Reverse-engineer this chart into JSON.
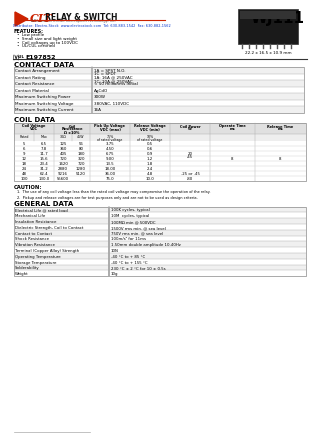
{
  "title": "WJ111",
  "logo_cit": "CIT",
  "logo_relay": "RELAY & SWITCH",
  "logo_sub": "A Division of Circuit Interruption Technology, Inc.",
  "distributor": "Distributor: Electro-Stock  www.electrostock.com  Tel: 630-883-1542  Fax: 630-882-1562",
  "features_title": "FEATURES:",
  "features": [
    "Low profile",
    "Small size and light weight",
    "Coil voltages up to 100VDC",
    "UL/CUL certified"
  ],
  "ul_text": "E197852",
  "dimensions": "22.2 x 16.5 x 10.9 mm",
  "contact_data_title": "CONTACT DATA",
  "contact_rows": [
    [
      "Contact Arrangement",
      "1A = SPST N.O.\n1C = SPDT"
    ],
    [
      "Contact Rating",
      "1A: 16A @ 250VAC\n1C: 10A @ 250VAC"
    ],
    [
      "Contact Resistance",
      "< 50 milliohms initial"
    ],
    [
      "Contact Material",
      "AgCdO"
    ],
    [
      "Maximum Switching Power",
      "300W"
    ],
    [
      "Maximum Switching Voltage",
      "380VAC, 110VDC"
    ],
    [
      "Maximum Switching Current",
      "16A"
    ]
  ],
  "coil_data_title": "COIL DATA",
  "coil_col_headers": [
    "Coil Voltage\nVDC",
    "Coil\nResistance\nΩ ±10%",
    "Pick Up Voltage\nVDC (max)",
    "Release Voltage\nVDC (min)",
    "Coil Power\nW",
    "Operate Time\nms",
    "Release Time\nms"
  ],
  "coil_sub_headers": [
    "Rated",
    "Max",
    "30Ω",
    "45W",
    "75%\nof rated voltage",
    "10%\nof rated voltage"
  ],
  "coil_rows": [
    [
      "5",
      "6.5",
      "125",
      "56",
      "3.75",
      "0.5",
      "",
      "",
      ""
    ],
    [
      "6",
      "7.8",
      "360",
      "80",
      "4.50",
      "0.6",
      "",
      "",
      ""
    ],
    [
      "9",
      "11.7",
      "405",
      "180",
      "6.75",
      "0.9",
      "20\n.45",
      "",
      ""
    ],
    [
      "12",
      "15.6",
      "720",
      "320",
      "9.00",
      "1.2",
      "",
      "8",
      "8"
    ],
    [
      "18",
      "23.4",
      "1620",
      "720",
      "13.5",
      "1.8",
      "",
      "",
      ""
    ],
    [
      "24",
      "31.2",
      "2880",
      "1280",
      "18.00",
      "2.4",
      "",
      "",
      ""
    ],
    [
      "48",
      "62.4",
      "9216",
      "5120",
      "36.00",
      "4.8",
      ".25 or .45",
      "",
      ""
    ],
    [
      "100",
      "130.0",
      "55600",
      "",
      "75.0",
      "10.0",
      ".80",
      "",
      ""
    ]
  ],
  "caution_title": "CAUTION:",
  "cautions": [
    "The use of any coil voltage less than the rated coil voltage may compromise the operation of the relay.",
    "Pickup and release voltages are for test purposes only and are not to be used as design criteria."
  ],
  "general_data_title": "GENERAL DATA",
  "general_rows": [
    [
      "Electrical Life @ rated load",
      "100K cycles, typical"
    ],
    [
      "Mechanical Life",
      "10M  cycles, typical"
    ],
    [
      "Insulation Resistance",
      "100MΩ min @ 500VDC"
    ],
    [
      "Dielectric Strength, Coil to Contact",
      "1500V rms min. @ sea level"
    ],
    [
      "Contact to Contact",
      "750V rms min. @ sea level"
    ],
    [
      "Shock Resistance",
      "100m/s² for 11ms"
    ],
    [
      "Vibration Resistance",
      "1.50mm double amplitude 10-40Hz"
    ],
    [
      "Terminal (Copper Alloy) Strength",
      "10N"
    ],
    [
      "Operating Temperature",
      "-40 °C to + 85 °C"
    ],
    [
      "Storage Temperature",
      "-40 °C to + 155 °C"
    ],
    [
      "Solderability",
      "230 °C ± 2 °C for 10 ± 0.5s"
    ],
    [
      "Weight",
      "10g"
    ]
  ],
  "bg_color": "#ffffff"
}
